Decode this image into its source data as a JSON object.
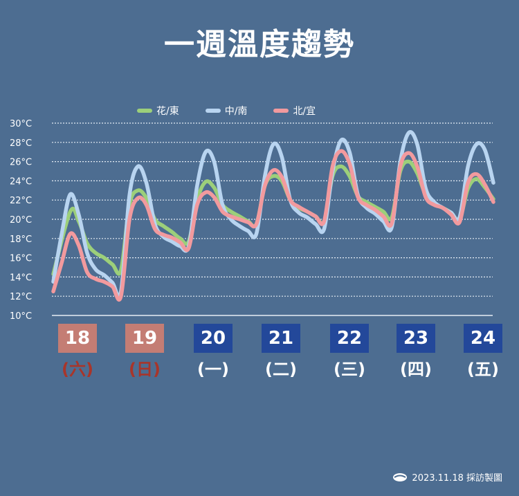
{
  "chart_data": {
    "type": "line",
    "title": "一週溫度趨勢",
    "ylim": [
      10,
      30
    ],
    "y_ticks": [
      10,
      12,
      14,
      16,
      18,
      20,
      22,
      24,
      26,
      28,
      30
    ],
    "y_tick_labels": [
      "10°C",
      "12°C",
      "14°C",
      "16°C",
      "18°C",
      "20°C",
      "22°C",
      "24°C",
      "26°C",
      "28°C",
      "30°C"
    ],
    "grid": true,
    "legend_position": "top",
    "x_unit": "hours from 00:00 on the 18th",
    "x_ticks": [
      {
        "day": "18",
        "weekday": "(六)",
        "box_color": "#c47d74",
        "text_color": "#a8352a"
      },
      {
        "day": "19",
        "weekday": "(日)",
        "box_color": "#c47d74",
        "text_color": "#a8352a"
      },
      {
        "day": "20",
        "weekday": "(一)",
        "box_color": "#23489a",
        "text_color": "#ffffff"
      },
      {
        "day": "21",
        "weekday": "(二)",
        "box_color": "#23489a",
        "text_color": "#ffffff"
      },
      {
        "day": "22",
        "weekday": "(三)",
        "box_color": "#23489a",
        "text_color": "#ffffff"
      },
      {
        "day": "23",
        "weekday": "(四)",
        "box_color": "#23489a",
        "text_color": "#ffffff"
      },
      {
        "day": "24",
        "weekday": "(五)",
        "box_color": "#23489a",
        "text_color": "#ffffff"
      }
    ],
    "series": [
      {
        "name": "花/東",
        "color": "#9ccf7a",
        "points": [
          [
            0,
            14.3
          ],
          [
            6,
            20.8
          ],
          [
            9,
            19.8
          ],
          [
            12,
            17.5
          ],
          [
            15,
            16.5
          ],
          [
            18,
            16
          ],
          [
            21,
            15.3
          ],
          [
            24,
            14.7
          ],
          [
            27,
            21.5
          ],
          [
            30,
            23
          ],
          [
            33,
            22.2
          ],
          [
            36,
            20
          ],
          [
            39,
            19.3
          ],
          [
            42,
            18.7
          ],
          [
            45,
            18
          ],
          [
            48,
            17.7
          ],
          [
            51,
            22
          ],
          [
            54,
            23.9
          ],
          [
            57,
            23.3
          ],
          [
            60,
            21.5
          ],
          [
            63,
            20.8
          ],
          [
            66,
            20.3
          ],
          [
            69,
            19.8
          ],
          [
            72,
            19.5
          ],
          [
            75,
            23.5
          ],
          [
            78,
            24.5
          ],
          [
            81,
            24
          ],
          [
            84,
            22
          ],
          [
            87,
            21.2
          ],
          [
            90,
            20.8
          ],
          [
            93,
            20.3
          ],
          [
            96,
            19.8
          ],
          [
            99,
            24.5
          ],
          [
            102,
            25.5
          ],
          [
            105,
            24.5
          ],
          [
            108,
            22.4
          ],
          [
            111,
            21.8
          ],
          [
            114,
            21.3
          ],
          [
            117,
            20.8
          ],
          [
            120,
            20.2
          ],
          [
            123,
            25
          ],
          [
            126,
            26
          ],
          [
            129,
            24.8
          ],
          [
            132,
            22.5
          ],
          [
            135,
            21.6
          ],
          [
            138,
            21.2
          ],
          [
            141,
            20.7
          ],
          [
            144,
            20
          ],
          [
            147,
            23.2
          ],
          [
            150,
            24.2
          ],
          [
            153,
            23.3
          ],
          [
            156,
            22.1
          ]
        ]
      },
      {
        "name": "中/南",
        "color": "#b8d4f0",
        "points": [
          [
            0,
            13.5
          ],
          [
            3,
            18.5
          ],
          [
            6,
            22.6
          ],
          [
            9,
            20.5
          ],
          [
            12,
            16.5
          ],
          [
            15,
            14.8
          ],
          [
            18,
            14.2
          ],
          [
            21,
            13.4
          ],
          [
            24,
            12.5
          ],
          [
            27,
            22.5
          ],
          [
            30,
            25.5
          ],
          [
            33,
            23.8
          ],
          [
            36,
            19.5
          ],
          [
            39,
            18.2
          ],
          [
            42,
            17.7
          ],
          [
            45,
            17.2
          ],
          [
            48,
            17.2
          ],
          [
            51,
            23.5
          ],
          [
            54,
            27
          ],
          [
            57,
            26
          ],
          [
            60,
            21.5
          ],
          [
            63,
            20
          ],
          [
            66,
            19.3
          ],
          [
            69,
            18.8
          ],
          [
            72,
            18.5
          ],
          [
            75,
            24.5
          ],
          [
            78,
            27.8
          ],
          [
            81,
            26.5
          ],
          [
            84,
            22
          ],
          [
            87,
            20.7
          ],
          [
            90,
            20.2
          ],
          [
            93,
            19.5
          ],
          [
            96,
            19
          ],
          [
            99,
            25
          ],
          [
            102,
            28.2
          ],
          [
            105,
            27
          ],
          [
            108,
            22.5
          ],
          [
            111,
            21.2
          ],
          [
            114,
            20.6
          ],
          [
            117,
            19.8
          ],
          [
            120,
            19.2
          ],
          [
            123,
            26
          ],
          [
            126,
            29
          ],
          [
            129,
            27.8
          ],
          [
            132,
            23.2
          ],
          [
            135,
            21.8
          ],
          [
            138,
            21.2
          ],
          [
            141,
            20.7
          ],
          [
            144,
            20.2
          ],
          [
            147,
            25.5
          ],
          [
            150,
            27.8
          ],
          [
            153,
            27.2
          ],
          [
            156,
            23.8
          ]
        ]
      },
      {
        "name": "北/宜",
        "color": "#f29a9e",
        "points": [
          [
            0,
            12.5
          ],
          [
            3,
            15.5
          ],
          [
            6,
            18.5
          ],
          [
            9,
            17.3
          ],
          [
            12,
            14.5
          ],
          [
            15,
            13.8
          ],
          [
            18,
            13.5
          ],
          [
            21,
            13
          ],
          [
            24,
            12
          ],
          [
            27,
            20
          ],
          [
            30,
            22.2
          ],
          [
            33,
            21.5
          ],
          [
            36,
            19
          ],
          [
            39,
            18.4
          ],
          [
            42,
            18.1
          ],
          [
            45,
            17.6
          ],
          [
            48,
            17
          ],
          [
            51,
            21.5
          ],
          [
            54,
            22.8
          ],
          [
            57,
            22.3
          ],
          [
            60,
            20.8
          ],
          [
            63,
            20.3
          ],
          [
            66,
            20
          ],
          [
            69,
            19.7
          ],
          [
            72,
            19.5
          ],
          [
            75,
            23.5
          ],
          [
            78,
            25.1
          ],
          [
            81,
            24.4
          ],
          [
            84,
            22
          ],
          [
            87,
            21.3
          ],
          [
            90,
            20.8
          ],
          [
            93,
            20.3
          ],
          [
            96,
            19.8
          ],
          [
            99,
            25.5
          ],
          [
            102,
            27.1
          ],
          [
            105,
            25.8
          ],
          [
            108,
            22.3
          ],
          [
            111,
            21.5
          ],
          [
            114,
            21
          ],
          [
            117,
            20.3
          ],
          [
            120,
            19.6
          ],
          [
            123,
            25.5
          ],
          [
            126,
            26.9
          ],
          [
            129,
            25.5
          ],
          [
            132,
            22.3
          ],
          [
            135,
            21.5
          ],
          [
            138,
            21.2
          ],
          [
            141,
            20.5
          ],
          [
            144,
            19.7
          ],
          [
            147,
            23.8
          ],
          [
            150,
            24.7
          ],
          [
            153,
            23.6
          ],
          [
            156,
            21.8
          ]
        ]
      }
    ]
  },
  "credit": "2023.11.18 採訪製圖"
}
